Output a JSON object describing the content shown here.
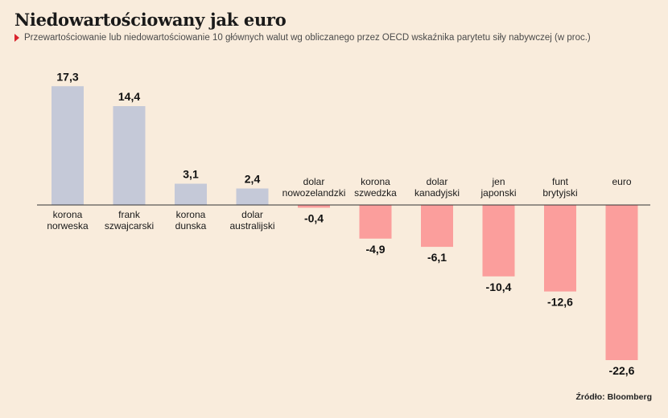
{
  "header": {
    "title": "Niedowartościowany jak euro",
    "subtitle": "Przewartościowanie lub niedowartościowanie 10 głównych walut wg obliczanego przez OECD wskaźnika parytetu siły nabywczej (w proc.)"
  },
  "footer": {
    "source": "Źródło: Bloomberg"
  },
  "colors": {
    "positive": "#c5c9d8",
    "negative": "#fb9e9c",
    "axis": "#333333"
  },
  "chart_data": {
    "type": "bar",
    "categories": [
      [
        "korona",
        "norweska"
      ],
      [
        "frank",
        "szwajcarski"
      ],
      [
        "korona",
        "dunska"
      ],
      [
        "dolar",
        "australijski"
      ],
      [
        "dolar",
        "nowozelandzki"
      ],
      [
        "korona",
        "szwedzka"
      ],
      [
        "dolar",
        "kanadyjski"
      ],
      [
        "jen",
        "japonski"
      ],
      [
        "funt",
        "brytyjski"
      ],
      [
        "euro"
      ]
    ],
    "values": [
      17.3,
      14.4,
      3.1,
      2.4,
      -0.4,
      -4.9,
      -6.1,
      -10.4,
      -12.6,
      -22.6
    ],
    "value_labels": [
      "17,3",
      "14,4",
      "3,1",
      "2,4",
      "-0,4",
      "-4,9",
      "-6,1",
      "-10,4",
      "-12,6",
      "-22,6"
    ],
    "title": "Niedowartościowany jak euro",
    "subtitle": "Przewartościowanie lub niedowartościowanie 10 głównych walut wg obliczanego przez OECD wskaźnika parytetu siły nabywczej (w proc.)",
    "grid": false,
    "legend": "none"
  }
}
